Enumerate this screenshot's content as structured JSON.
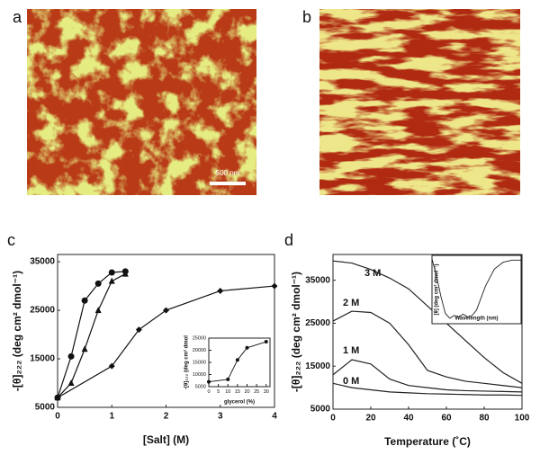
{
  "panel_labels": [
    "a",
    "b",
    "c",
    "d"
  ],
  "scale_bar": "500 nm",
  "chart_data": [
    {
      "type": "line",
      "xlabel": "[Salt] (M)",
      "ylabel": "-[θ]₂₂₂ (deg cm² dmol⁻¹)",
      "xlim": [
        0,
        4
      ],
      "xticks": [
        0,
        1,
        2,
        3,
        4
      ],
      "ylim": [
        5000,
        36500
      ],
      "yticks": [
        5000,
        15000,
        25000,
        35000
      ],
      "series": [
        {
          "marker": "circle",
          "color": "#111111",
          "x": [
            0,
            0.25,
            0.5,
            0.75,
            1,
            1.25
          ],
          "values": [
            7000,
            15500,
            27000,
            30500,
            32800,
            33000
          ]
        },
        {
          "marker": "triangle",
          "color": "#111111",
          "x": [
            0,
            0.25,
            0.5,
            0.75,
            1,
            1.25
          ],
          "values": [
            7000,
            10000,
            17000,
            25000,
            31000,
            32500
          ]
        },
        {
          "marker": "diamond",
          "color": "#111111",
          "x": [
            0,
            1,
            1.5,
            2,
            3,
            4
          ],
          "values": [
            7000,
            13500,
            21000,
            25000,
            29000,
            30000
          ]
        }
      ]
    },
    {
      "type": "line",
      "xlabel": "glycerol (%)",
      "ylabel": "-[θ]₂₂₂ (deg cm² dmol",
      "xlim": [
        0,
        32
      ],
      "xticks": [
        0,
        5,
        10,
        15,
        20,
        25,
        30
      ],
      "ylim": [
        5000,
        25000
      ],
      "yticks": [
        5000,
        10000,
        15000,
        20000,
        25000
      ],
      "series": [
        {
          "marker": "circle",
          "color": "#111111",
          "x": [
            0,
            10,
            15,
            20,
            30
          ],
          "values": [
            7000,
            8000,
            16000,
            21000,
            23500
          ]
        }
      ]
    },
    {
      "type": "line",
      "xlabel": "Temperature (˚C)",
      "ylabel": "-[θ]₂₂₂ (deg cm² dmol⁻¹)",
      "xlim": [
        0,
        100
      ],
      "xticks": [
        0,
        20,
        40,
        60,
        80,
        100
      ],
      "ylim": [
        5000,
        41000
      ],
      "yticks": [
        5000,
        15000,
        25000,
        35000
      ],
      "series": [
        {
          "name": "3 M",
          "color": "#222222",
          "x": [
            0,
            10,
            20,
            30,
            40,
            50,
            60,
            70,
            80,
            90,
            100
          ],
          "values": [
            39500,
            39000,
            37500,
            35500,
            33000,
            29000,
            25000,
            21000,
            17000,
            13500,
            11000
          ]
        },
        {
          "name": "2 M",
          "color": "#222222",
          "x": [
            0,
            10,
            20,
            30,
            40,
            50,
            60,
            70,
            80,
            90,
            100
          ],
          "values": [
            25500,
            27800,
            27500,
            25000,
            20000,
            14000,
            12500,
            11500,
            11000,
            10500,
            10000
          ]
        },
        {
          "name": "1 M",
          "color": "#222222",
          "x": [
            0,
            10,
            20,
            30,
            40,
            50,
            60,
            70,
            80,
            90,
            100
          ],
          "values": [
            13000,
            16500,
            15500,
            12000,
            10500,
            10000,
            9500,
            9300,
            9200,
            9100,
            9000
          ]
        },
        {
          "name": "0 M",
          "color": "#222222",
          "x": [
            0,
            10,
            20,
            30,
            40,
            50,
            60,
            70,
            80,
            90,
            100
          ],
          "values": [
            11000,
            10000,
            9500,
            9000,
            8800,
            8600,
            8500,
            8400,
            8300,
            8300,
            8200
          ]
        }
      ]
    },
    {
      "type": "line",
      "xlabel": "Wavelength (nm)",
      "ylabel": "[θ] (deg cm² dmol⁻¹)",
      "xlim": [
        0,
        1
      ],
      "ylim": [
        0,
        1
      ],
      "series": [
        {
          "color": "#222222",
          "x": [
            0,
            0.05,
            0.1,
            0.15,
            0.2,
            0.25,
            0.3,
            0.35,
            0.4,
            0.45,
            0.5,
            0.6,
            0.7,
            0.8,
            0.9,
            1.0
          ],
          "values": [
            0.95,
            0.7,
            0.4,
            0.15,
            0.08,
            0.12,
            0.1,
            0.14,
            0.1,
            0.12,
            0.2,
            0.55,
            0.8,
            0.9,
            0.93,
            0.93
          ]
        }
      ]
    }
  ]
}
